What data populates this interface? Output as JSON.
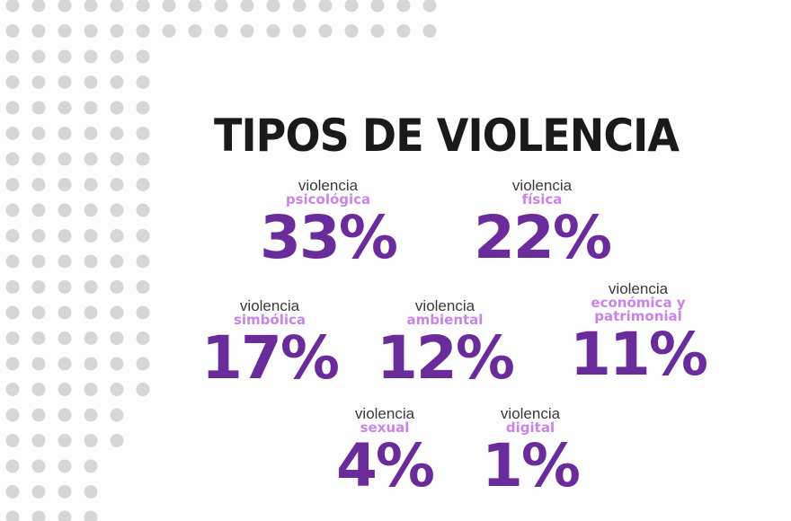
{
  "title": "TIPOS DE  VIOLENCIA",
  "prefix": "violencia",
  "colors": {
    "accent": "#6a2c9b",
    "type_label": "#c985e6",
    "dots": "#d6d6d6",
    "title": "#1a1a1a"
  },
  "stats": [
    {
      "type": "psicológica",
      "value": "33%"
    },
    {
      "type": "física",
      "value": "22%"
    },
    {
      "type": "simbólica",
      "value": "17%"
    },
    {
      "type": "ambiental",
      "value": "12%"
    },
    {
      "type_line1": "económica y",
      "type_line2": "patrimonial",
      "value": "11%"
    },
    {
      "type": "sexual",
      "value": "4%"
    },
    {
      "type": "digital",
      "value": "1%"
    }
  ]
}
